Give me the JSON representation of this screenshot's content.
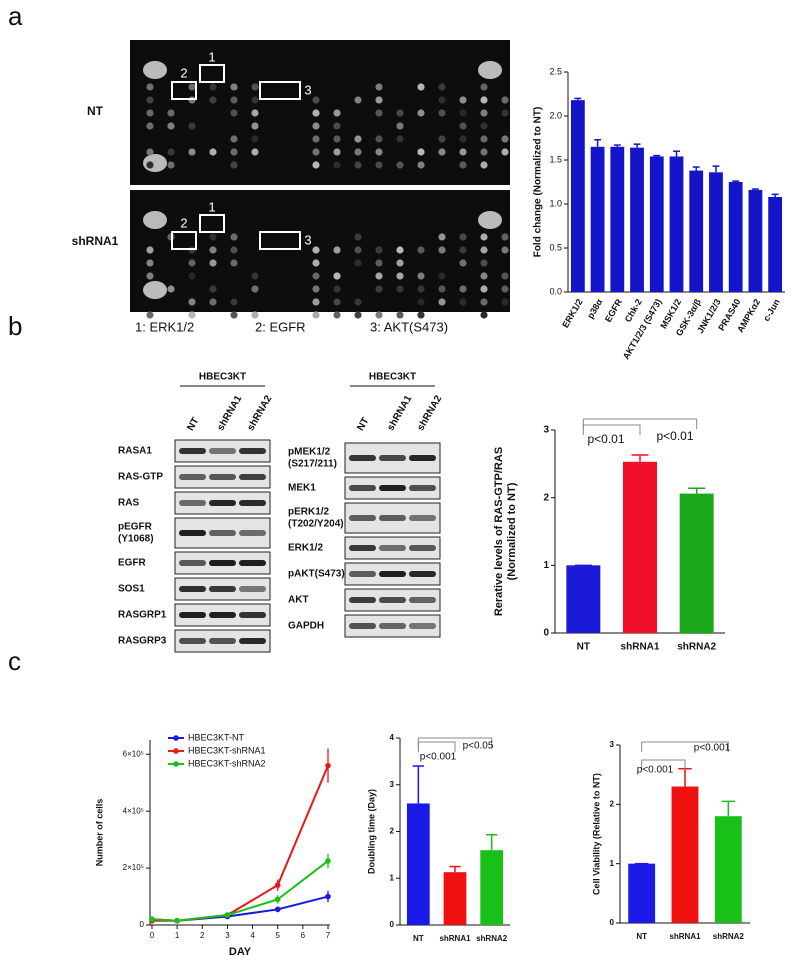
{
  "panel_labels": [
    "a",
    "b",
    "c"
  ],
  "array": {
    "conditions": [
      "NT",
      "shRNA1"
    ],
    "box_labels": [
      "1",
      "2",
      "3"
    ],
    "legend": [
      "1: ERK1/2",
      "2: EGFR",
      "3: AKT(S473)"
    ]
  },
  "blots": [
    {
      "header": "HBEC3KT",
      "lanes": [
        "NT",
        "shRNA1",
        "shRNA2"
      ],
      "rows": [
        [
          "RASA1"
        ],
        [
          "RAS-GTP"
        ],
        [
          "RAS"
        ],
        [
          "pEGFR",
          "(Y1068)"
        ],
        [
          "EGFR"
        ],
        [
          "SOS1"
        ],
        [
          "RASGRP1"
        ],
        [
          "RASGRP3"
        ]
      ]
    },
    {
      "header": "HBEC3KT",
      "lanes": [
        "NT",
        "shRNA1",
        "shRNA2"
      ],
      "rows": [
        [
          "pMEK1/2",
          "(S217/211)"
        ],
        [
          "MEK1"
        ],
        [
          "pERK1/2",
          "(T202/Y204)"
        ],
        [
          "ERK1/2"
        ],
        [
          "pAKT(S473)"
        ],
        [
          "AKT"
        ],
        [
          "GAPDH"
        ]
      ]
    }
  ],
  "chart_data": [
    {
      "type": "bar",
      "categories": [
        "ERK1/2",
        "p38α",
        "EGFR",
        "Chk-2",
        "AKT1/2/3 (S473)",
        "MSK1/2",
        "GSK-3α/β",
        "JNK1/2/3",
        "PRAS40",
        "AMPKα2",
        "c-Jun"
      ],
      "values": [
        2.18,
        1.65,
        1.65,
        1.64,
        1.54,
        1.54,
        1.38,
        1.36,
        1.25,
        1.16,
        1.08
      ],
      "errors": [
        0.02,
        0.08,
        0.02,
        0.04,
        0.01,
        0.06,
        0.04,
        0.07,
        0.01,
        0.01,
        0.03
      ],
      "color": "#1414c8",
      "ylim": [
        0,
        2.5
      ],
      "yticks": [
        {
          "value": 0,
          "label": "0.0"
        },
        0.5,
        {
          "value": 1,
          "label": "1.0"
        },
        1.5,
        {
          "value": 2,
          "label": "2.0"
        },
        2.5
      ],
      "ylabel": [
        "Fold change (Normalized to NT)"
      ]
    },
    {
      "type": "bar",
      "categories": [
        "NT",
        "shRNA1",
        "shRNA2"
      ],
      "values": [
        1,
        2.53,
        2.06
      ],
      "errors": [
        0,
        0.1,
        0.08
      ],
      "colors": [
        "#1a1ad8",
        "#f0102a",
        "#1aa81a"
      ],
      "ylim": [
        0,
        3
      ],
      "yticks": [
        0,
        1,
        2,
        3
      ],
      "ylabel": [
        "Rerative levels of RAS-GTP/RAS",
        "(Normalized to NT)"
      ],
      "annotations": [
        "p<0.01",
        "p<0.01"
      ]
    },
    {
      "type": "line",
      "x": [
        0,
        1,
        3,
        5,
        7
      ],
      "xlim": [
        0,
        7
      ],
      "xticks": [
        0,
        1,
        2,
        3,
        4,
        5,
        6,
        7
      ],
      "xlabel": "DAY",
      "ylabel": [
        "Number of cells"
      ],
      "ylim": [
        0,
        650000
      ],
      "yticks": [
        0,
        {
          "value": 200000,
          "label": "2×10⁵"
        },
        {
          "value": 400000,
          "label": "4×10⁵"
        },
        {
          "value": 600000,
          "label": "6×10⁵"
        }
      ],
      "series": [
        {
          "name": "HBEC3KT-NT",
          "color": "#1a1ae0",
          "values": [
            20000,
            15000,
            30000,
            55000,
            100000
          ],
          "errors": [
            5000,
            3000,
            5000,
            10000,
            20000
          ]
        },
        {
          "name": "HBEC3KT-shRNA1",
          "color": "#e81818",
          "values": [
            15000,
            15000,
            35000,
            140000,
            560000
          ],
          "errors": [
            5000,
            3000,
            8000,
            20000,
            60000
          ]
        },
        {
          "name": "HBEC3KT-shRNA2",
          "color": "#18c018",
          "values": [
            20000,
            15000,
            35000,
            90000,
            225000
          ],
          "errors": [
            5000,
            3000,
            8000,
            15000,
            25000
          ]
        }
      ]
    },
    {
      "type": "bar",
      "categories": [
        "NT",
        "shRNA1",
        "shRNA2"
      ],
      "values": [
        2.6,
        1.13,
        1.6
      ],
      "errors": [
        0.8,
        0.12,
        0.33
      ],
      "colors": [
        "#1a1ae8",
        "#f01010",
        "#18c018"
      ],
      "ylim": [
        0,
        4
      ],
      "yticks": [
        0,
        1,
        2,
        3,
        4
      ],
      "ylabel": [
        "Doubling time (Day)"
      ],
      "annotations": [
        "p<0.001",
        "p<0.05"
      ]
    },
    {
      "type": "bar",
      "categories": [
        "NT",
        "shRNA1",
        "shRNA2"
      ],
      "values": [
        1,
        2.3,
        1.8
      ],
      "errors": [
        0,
        0.3,
        0.25
      ],
      "colors": [
        "#1a1ae8",
        "#f01010",
        "#18c018"
      ],
      "ylim": [
        0,
        3
      ],
      "yticks": [
        0,
        1,
        2,
        3
      ],
      "ylabel": [
        "Cell Viability (Relative to NT)"
      ],
      "annotations": [
        "p<0.001",
        "p<0.001"
      ]
    }
  ]
}
